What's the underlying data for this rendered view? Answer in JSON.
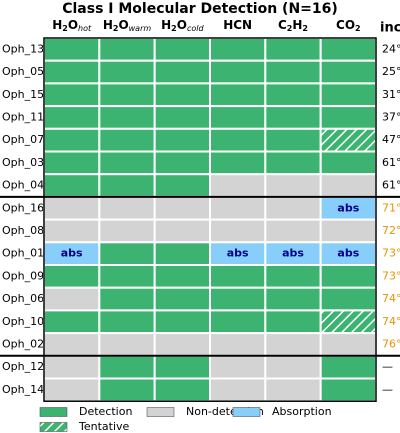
{
  "chart_data": {
    "type": "heatmap",
    "title": "Class I Molecular Detection (N=16)",
    "columns": [
      [
        {
          "text": "H",
          "style": "normal"
        },
        {
          "text": "2",
          "style": "sub"
        },
        {
          "text": "O",
          "style": "normal"
        },
        {
          "text": "hot",
          "style": "sub-italic"
        }
      ],
      [
        {
          "text": "H",
          "style": "normal"
        },
        {
          "text": "2",
          "style": "sub"
        },
        {
          "text": "O",
          "style": "normal"
        },
        {
          "text": "warm",
          "style": "sub-italic"
        }
      ],
      [
        {
          "text": "H",
          "style": "normal"
        },
        {
          "text": "2",
          "style": "sub"
        },
        {
          "text": "O",
          "style": "normal"
        },
        {
          "text": "cold",
          "style": "sub-italic"
        }
      ],
      [
        {
          "text": "HCN",
          "style": "normal"
        }
      ],
      [
        {
          "text": "C",
          "style": "normal"
        },
        {
          "text": "2",
          "style": "sub"
        },
        {
          "text": "H",
          "style": "normal"
        },
        {
          "text": "2",
          "style": "sub"
        }
      ],
      [
        {
          "text": "CO",
          "style": "normal"
        },
        {
          "text": "2",
          "style": "sub"
        }
      ]
    ],
    "inc_header": "inc",
    "legend": [
      {
        "label": "Detection",
        "color": "#3cb371"
      },
      {
        "label": "Non-detection",
        "color": "#d3d3d3"
      },
      {
        "label": "Absorption",
        "color": "#87cefa",
        "cell_label": "abs"
      },
      {
        "label": "Tentative",
        "color": "#3cb371",
        "hatch": true
      }
    ],
    "groups": [
      {
        "inc_color": "#000000",
        "rows": [
          {
            "name": "Oph_13",
            "inc": "24°",
            "cells": [
              "Detection",
              "Detection",
              "Detection",
              "Detection",
              "Detection",
              "Detection"
            ]
          },
          {
            "name": "Oph_05",
            "inc": "25°",
            "cells": [
              "Detection",
              "Detection",
              "Detection",
              "Detection",
              "Detection",
              "Detection"
            ]
          },
          {
            "name": "Oph_15",
            "inc": "31°",
            "cells": [
              "Detection",
              "Detection",
              "Detection",
              "Detection",
              "Detection",
              "Detection"
            ]
          },
          {
            "name": "Oph_11",
            "inc": "37°",
            "cells": [
              "Detection",
              "Detection",
              "Detection",
              "Detection",
              "Detection",
              "Detection"
            ]
          },
          {
            "name": "Oph_07",
            "inc": "47°",
            "cells": [
              "Detection",
              "Detection",
              "Detection",
              "Detection",
              "Detection",
              "Tentative"
            ]
          },
          {
            "name": "Oph_03",
            "inc": "61°",
            "cells": [
              "Detection",
              "Detection",
              "Detection",
              "Detection",
              "Detection",
              "Detection"
            ]
          },
          {
            "name": "Oph_04",
            "inc": "61°",
            "cells": [
              "Detection",
              "Detection",
              "Detection",
              "Non-detection",
              "Non-detection",
              "Non-detection"
            ]
          }
        ]
      },
      {
        "inc_color": "#e69500",
        "rows": [
          {
            "name": "Oph_16",
            "inc": "71°",
            "cells": [
              "Non-detection",
              "Non-detection",
              "Non-detection",
              "Non-detection",
              "Non-detection",
              "Absorption"
            ]
          },
          {
            "name": "Oph_08",
            "inc": "72°",
            "cells": [
              "Non-detection",
              "Non-detection",
              "Non-detection",
              "Non-detection",
              "Non-detection",
              "Non-detection"
            ]
          },
          {
            "name": "Oph_01",
            "inc": "73°",
            "cells": [
              "Absorption",
              "Detection",
              "Detection",
              "Absorption",
              "Absorption",
              "Absorption"
            ]
          },
          {
            "name": "Oph_09",
            "inc": "73°",
            "cells": [
              "Detection",
              "Detection",
              "Detection",
              "Detection",
              "Detection",
              "Detection"
            ]
          },
          {
            "name": "Oph_06",
            "inc": "74°",
            "cells": [
              "Non-detection",
              "Detection",
              "Detection",
              "Detection",
              "Detection",
              "Detection"
            ]
          },
          {
            "name": "Oph_10",
            "inc": "74°",
            "cells": [
              "Detection",
              "Detection",
              "Detection",
              "Detection",
              "Detection",
              "Tentative"
            ]
          },
          {
            "name": "Oph_02",
            "inc": "76°",
            "cells": [
              "Non-detection",
              "Non-detection",
              "Non-detection",
              "Non-detection",
              "Non-detection",
              "Non-detection"
            ]
          }
        ]
      },
      {
        "inc_color": "#000000",
        "rows": [
          {
            "name": "Oph_12",
            "inc": "—",
            "cells": [
              "Non-detection",
              "Detection",
              "Detection",
              "Non-detection",
              "Non-detection",
              "Detection"
            ]
          },
          {
            "name": "Oph_14",
            "inc": "—",
            "cells": [
              "Non-detection",
              "Detection",
              "Detection",
              "Non-detection",
              "Non-detection",
              "Detection"
            ]
          }
        ]
      }
    ]
  }
}
